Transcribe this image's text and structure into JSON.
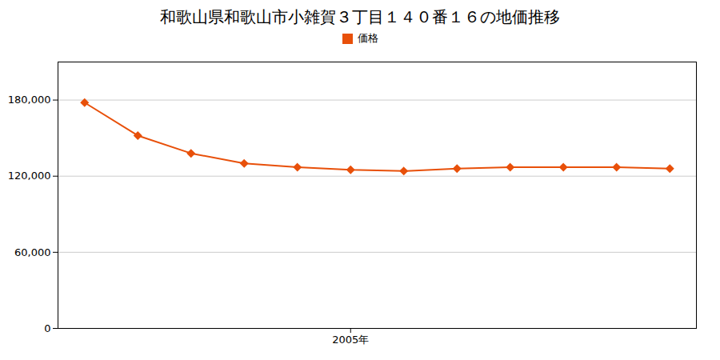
{
  "chart_data": {
    "type": "line",
    "title": "和歌山県和歌山市小雑賀３丁目１４０番１６の地価推移",
    "x": [
      2000,
      2001,
      2002,
      2003,
      2004,
      2005,
      2006,
      2007,
      2008,
      2009,
      2010,
      2011
    ],
    "series": [
      {
        "name": "価格",
        "color": "#e8500a",
        "marker": "diamond",
        "values": [
          178000,
          152000,
          138000,
          130000,
          127000,
          125000,
          124000,
          126000,
          127000,
          127000,
          127000,
          126000
        ]
      }
    ],
    "xlim": [
      1999.5,
      2011.5
    ],
    "xticks": [
      {
        "value": 2005,
        "label": "2005年"
      }
    ],
    "ylim": [
      0,
      210000
    ],
    "yticks": [
      0,
      {
        "value": 60000,
        "label": "60,000"
      },
      {
        "value": 120000,
        "label": "120,000"
      },
      {
        "value": 180000,
        "label": "180,000"
      }
    ],
    "grid": "y",
    "legend": "top"
  }
}
